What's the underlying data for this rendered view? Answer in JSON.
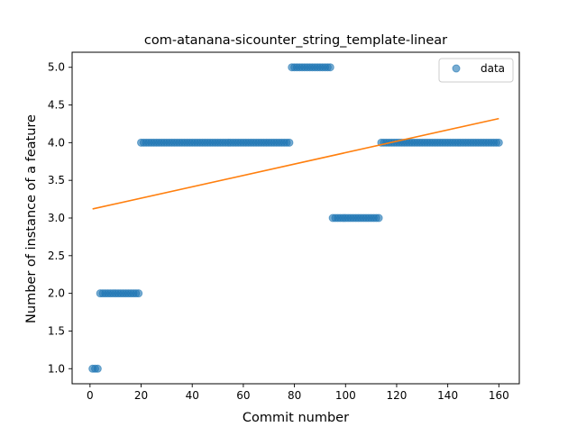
{
  "chart_data": {
    "type": "scatter",
    "title": "com-atanana-sicounter_string_template-linear",
    "xlabel": "Commit number",
    "ylabel": "Number of instance of a feature",
    "xlim": [
      -7,
      168
    ],
    "ylim": [
      0.8,
      5.2
    ],
    "x_ticks": [
      0,
      20,
      40,
      60,
      80,
      100,
      120,
      140,
      160
    ],
    "y_ticks": [
      1.0,
      1.5,
      2.0,
      2.5,
      3.0,
      3.5,
      4.0,
      4.5,
      5.0
    ],
    "x_tick_labels": [
      "0",
      "20",
      "40",
      "60",
      "80",
      "100",
      "120",
      "140",
      "160"
    ],
    "y_tick_labels": [
      "1.0",
      "1.5",
      "2.0",
      "2.5",
      "3.0",
      "3.5",
      "4.0",
      "4.5",
      "5.0"
    ],
    "grid": false,
    "legend_position": "top-right",
    "series": [
      {
        "name": "data",
        "kind": "scatter",
        "color": "#1f77b4",
        "opacity": 0.6,
        "segments": [
          {
            "x_from": 1,
            "x_to": 3,
            "y": 1
          },
          {
            "x_from": 4,
            "x_to": 19,
            "y": 2
          },
          {
            "x_from": 20,
            "x_to": 78,
            "y": 4
          },
          {
            "x_from": 79,
            "x_to": 94,
            "y": 5
          },
          {
            "x_from": 95,
            "x_to": 113,
            "y": 3
          },
          {
            "x_from": 114,
            "x_to": 160,
            "y": 4
          }
        ]
      },
      {
        "kind": "line",
        "color": "#ff7f0e",
        "x": [
          1,
          160
        ],
        "y": [
          3.12,
          4.32
        ]
      }
    ]
  }
}
